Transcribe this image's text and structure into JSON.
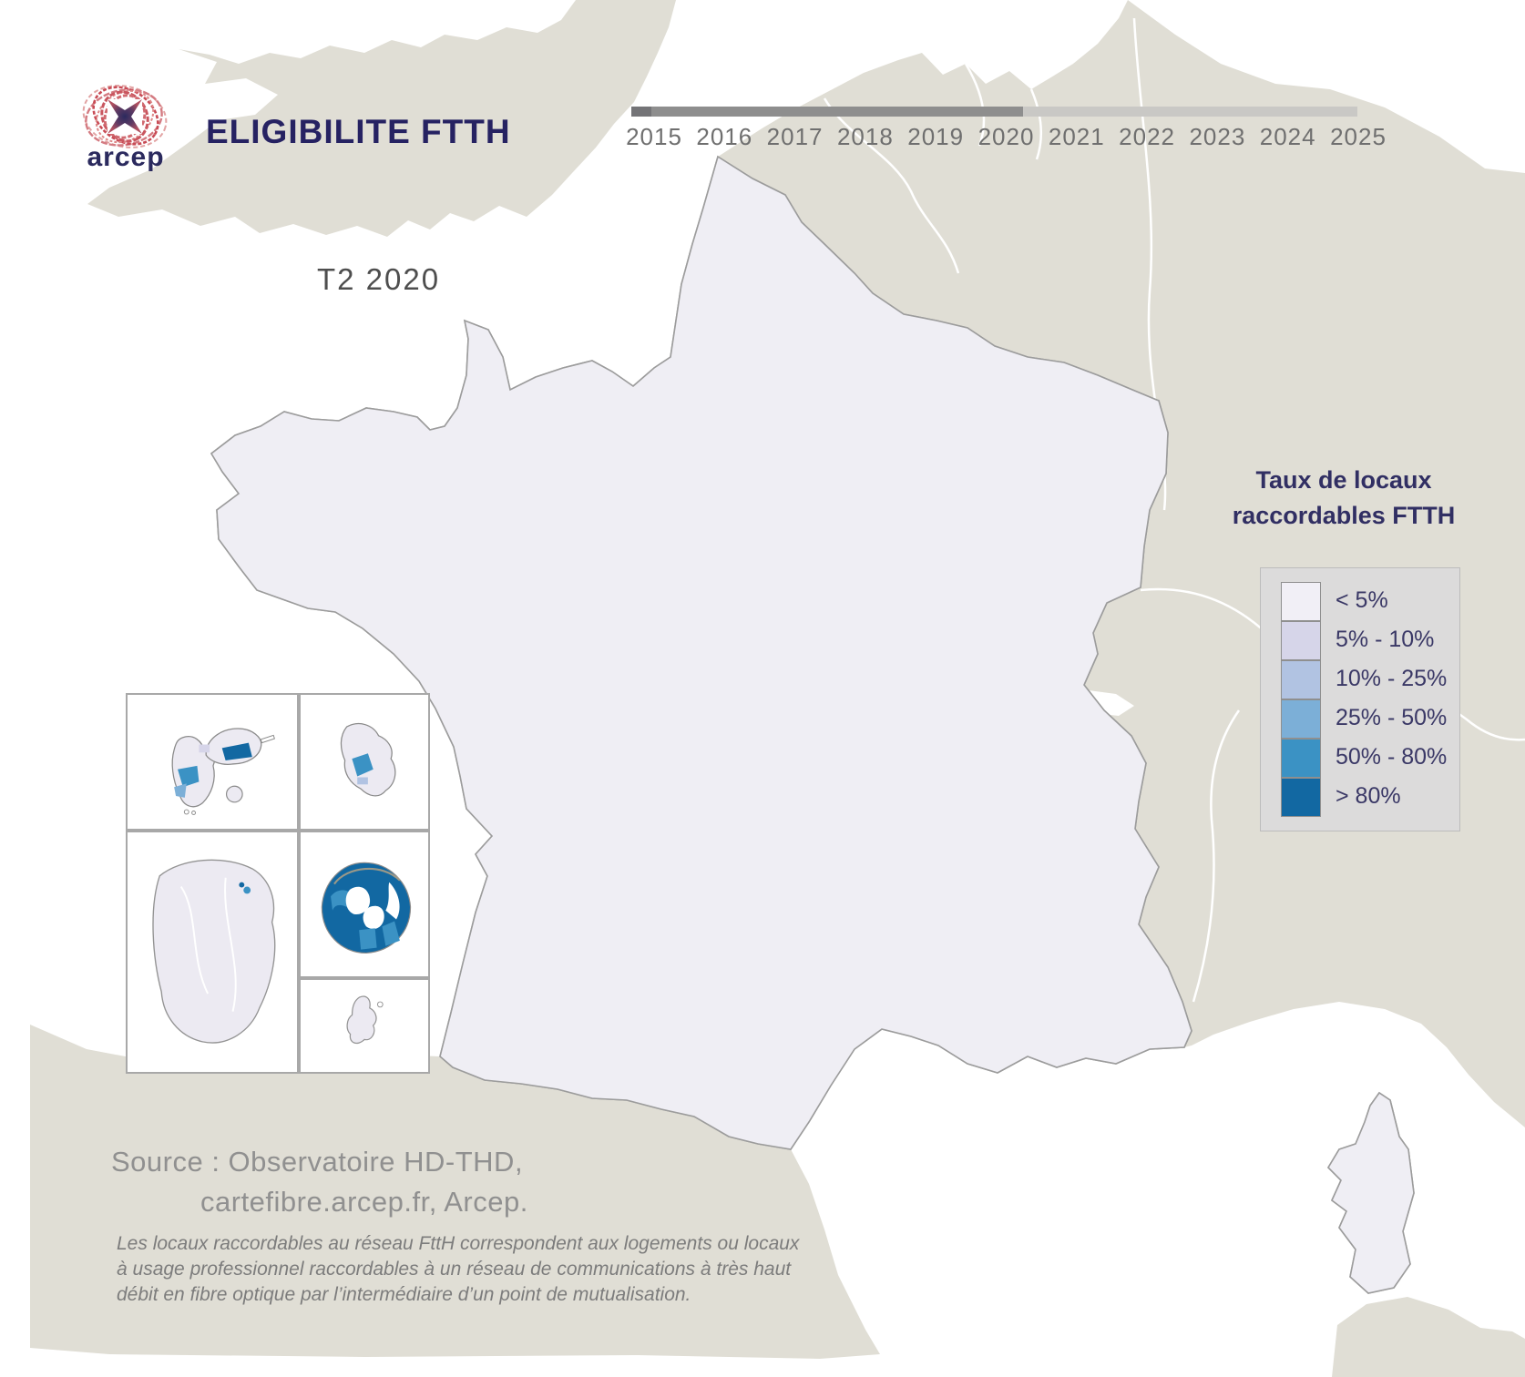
{
  "header": {
    "brand": "arcep",
    "title": "ELIGIBILITE FTTH"
  },
  "period_label": "T2 2020",
  "timeline": {
    "years": [
      "2015",
      "2016",
      "2017",
      "2018",
      "2019",
      "2020",
      "2021",
      "2022",
      "2023",
      "2024",
      "2025"
    ],
    "selected_year": "2020",
    "progress_fraction": 0.54
  },
  "legend": {
    "title_line1": "Taux de locaux",
    "title_line2": "raccordables FTTH",
    "items": [
      {
        "label": "< 5%",
        "color": "#f1eff6"
      },
      {
        "label": "5% - 10%",
        "color": "#d6d5e9"
      },
      {
        "label": "10% - 25%",
        "color": "#b1c3e2"
      },
      {
        "label": "25% - 50%",
        "color": "#7cafd7"
      },
      {
        "label": "50% - 80%",
        "color": "#3b92c4"
      },
      {
        "label": "> 80%",
        "color": "#1268a2"
      }
    ]
  },
  "source": {
    "line1": "Source : Observatoire HD-THD,",
    "line2": "cartefibre.arcep.fr, Arcep."
  },
  "footnote": {
    "lines": [
      "Les locaux raccordables au réseau FttH correspondent aux logements ou locaux",
      "à usage professionnel raccordables à un réseau de communications à très haut",
      "débit en fibre optique par l’intermédiaire d’un point de mutualisation."
    ]
  },
  "map_colors": {
    "sea": "#ffffff",
    "land": "#e0ded5",
    "france_fill": "#efeef4",
    "border": "#9c9c9c",
    "inset_fill": "#eceaf2",
    "coast_ring": "#b3a184"
  },
  "insets": [
    {
      "name": "guadeloupe"
    },
    {
      "name": "martinique"
    },
    {
      "name": "guyane"
    },
    {
      "name": "reunion"
    },
    {
      "name": "mayotte"
    }
  ]
}
